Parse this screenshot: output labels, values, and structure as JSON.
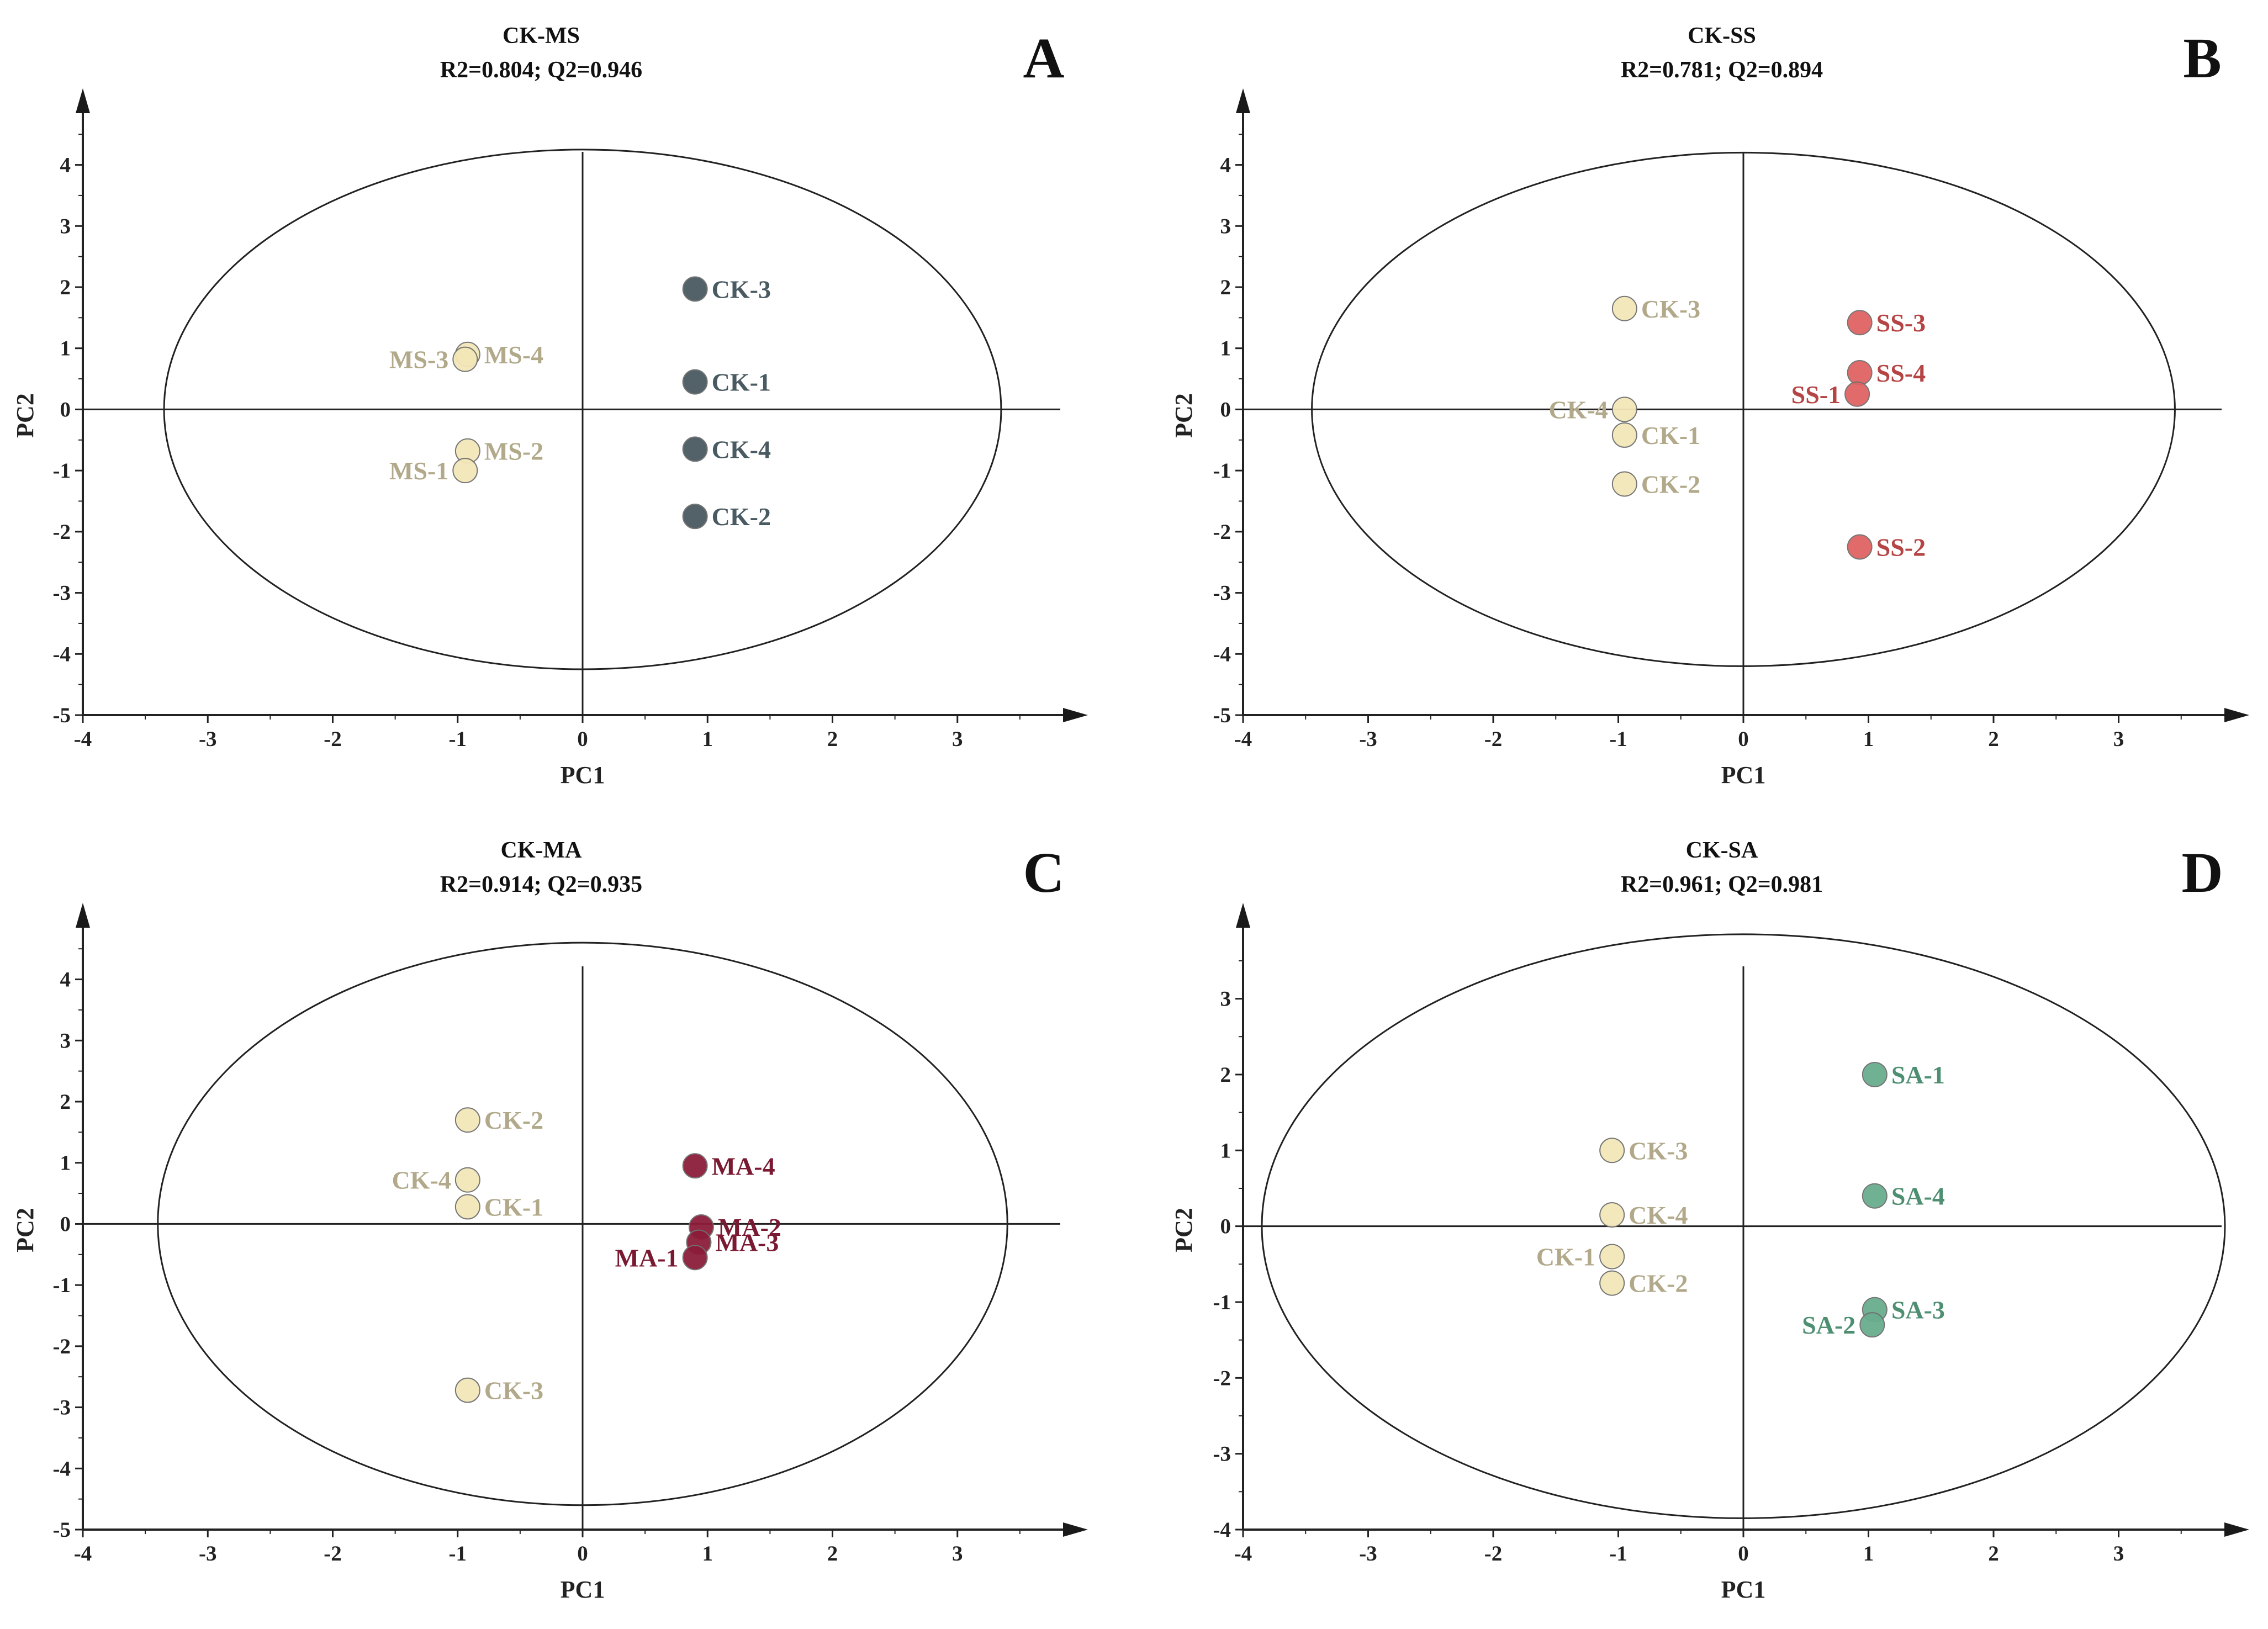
{
  "chart_data": [
    {
      "type": "scatter",
      "panel_letter": "A",
      "title": "CK-MS",
      "subtitle": "R2=0.804; Q2=0.946",
      "xlabel": "PC1",
      "ylabel": "PC2",
      "xlim": [
        -4,
        4
      ],
      "ylim": [
        -5,
        4.8
      ],
      "xticks": [
        -4,
        -3,
        -2,
        -1,
        0,
        1,
        2,
        3
      ],
      "yticks": [
        -5,
        -4,
        -3,
        -2,
        -1,
        0,
        1,
        2,
        3,
        4
      ],
      "ellipse": {
        "rx": 3.35,
        "ry": 4.25
      },
      "series": [
        {
          "name": "CK",
          "color": "#4a5a62",
          "points": [
            {
              "label": "CK-3",
              "x": 0.9,
              "y": 1.97,
              "anchor": "right"
            },
            {
              "label": "CK-1",
              "x": 0.9,
              "y": 0.45,
              "anchor": "right"
            },
            {
              "label": "CK-4",
              "x": 0.9,
              "y": -0.65,
              "anchor": "right"
            },
            {
              "label": "CK-2",
              "x": 0.9,
              "y": -1.75,
              "anchor": "right"
            }
          ]
        },
        {
          "name": "MS",
          "color": "#f3e7b8",
          "label_color": "#b1a98a",
          "points": [
            {
              "label": "MS-4",
              "x": -0.92,
              "y": 0.9,
              "anchor": "right"
            },
            {
              "label": "MS-3",
              "x": -0.94,
              "y": 0.82,
              "anchor": "left"
            },
            {
              "label": "MS-2",
              "x": -0.92,
              "y": -0.68,
              "anchor": "right"
            },
            {
              "label": "MS-1",
              "x": -0.94,
              "y": -1.0,
              "anchor": "left"
            }
          ]
        }
      ]
    },
    {
      "type": "scatter",
      "panel_letter": "B",
      "title": "CK-SS",
      "subtitle": "R2=0.781; Q2=0.894",
      "xlabel": "PC1",
      "ylabel": "PC2",
      "xlim": [
        -4,
        4
      ],
      "ylim": [
        -5,
        4.8
      ],
      "xticks": [
        -4,
        -3,
        -2,
        -1,
        0,
        1,
        2,
        3
      ],
      "yticks": [
        -5,
        -4,
        -3,
        -2,
        -1,
        0,
        1,
        2,
        3,
        4
      ],
      "ellipse": {
        "rx": 3.45,
        "ry": 4.2
      },
      "series": [
        {
          "name": "CK",
          "color": "#f3e7b8",
          "label_color": "#b1a98a",
          "points": [
            {
              "label": "CK-3",
              "x": -0.95,
              "y": 1.65,
              "anchor": "right"
            },
            {
              "label": "CK-4",
              "x": -0.95,
              "y": 0.0,
              "anchor": "left"
            },
            {
              "label": "CK-1",
              "x": -0.95,
              "y": -0.42,
              "anchor": "right"
            },
            {
              "label": "CK-2",
              "x": -0.95,
              "y": -1.22,
              "anchor": "right"
            }
          ]
        },
        {
          "name": "SS",
          "color": "#e06464",
          "label_color": "#b54545",
          "points": [
            {
              "label": "SS-3",
              "x": 0.93,
              "y": 1.42,
              "anchor": "right"
            },
            {
              "label": "SS-4",
              "x": 0.93,
              "y": 0.6,
              "anchor": "right"
            },
            {
              "label": "SS-1",
              "x": 0.91,
              "y": 0.25,
              "anchor": "left"
            },
            {
              "label": "SS-2",
              "x": 0.93,
              "y": -2.25,
              "anchor": "right"
            }
          ]
        }
      ]
    },
    {
      "type": "scatter",
      "panel_letter": "C",
      "title": "CK-MA",
      "subtitle": "R2=0.914; Q2=0.935",
      "xlabel": "PC1",
      "ylabel": "PC2",
      "xlim": [
        -4,
        4
      ],
      "ylim": [
        -5,
        4.8
      ],
      "xticks": [
        -4,
        -3,
        -2,
        -1,
        0,
        1,
        2,
        3
      ],
      "yticks": [
        -5,
        -4,
        -3,
        -2,
        -1,
        0,
        1,
        2,
        3,
        4
      ],
      "ellipse": {
        "rx": 3.4,
        "ry": 4.6
      },
      "series": [
        {
          "name": "CK",
          "color": "#f3e7b8",
          "label_color": "#b1a98a",
          "points": [
            {
              "label": "CK-2",
              "x": -0.92,
              "y": 1.7,
              "anchor": "right"
            },
            {
              "label": "CK-4",
              "x": -0.92,
              "y": 0.72,
              "anchor": "left"
            },
            {
              "label": "CK-1",
              "x": -0.92,
              "y": 0.28,
              "anchor": "right"
            },
            {
              "label": "CK-3",
              "x": -0.92,
              "y": -2.72,
              "anchor": "right"
            }
          ]
        },
        {
          "name": "MA",
          "color": "#8c1d3a",
          "label_color": "#7a1a32",
          "points": [
            {
              "label": "MA-4",
              "x": 0.9,
              "y": 0.95,
              "anchor": "right"
            },
            {
              "label": "MA-2",
              "x": 0.95,
              "y": -0.05,
              "anchor": "right"
            },
            {
              "label": "MA-3",
              "x": 0.93,
              "y": -0.3,
              "anchor": "right"
            },
            {
              "label": "MA-1",
              "x": 0.9,
              "y": -0.55,
              "anchor": "left"
            }
          ]
        }
      ]
    },
    {
      "type": "scatter",
      "panel_letter": "D",
      "title": "CK-SA",
      "subtitle": "R2=0.961; Q2=0.981",
      "xlabel": "PC1",
      "ylabel": "PC2",
      "xlim": [
        -4,
        4
      ],
      "ylim": [
        -4,
        3.9
      ],
      "xticks": [
        -4,
        -3,
        -2,
        -1,
        0,
        1,
        2,
        3
      ],
      "yticks": [
        -4,
        -3,
        -2,
        -1,
        0,
        1,
        2,
        3
      ],
      "ellipse": {
        "rx": 3.85,
        "ry": 3.85
      },
      "series": [
        {
          "name": "CK",
          "color": "#f3e7b8",
          "label_color": "#b1a98a",
          "points": [
            {
              "label": "CK-3",
              "x": -1.05,
              "y": 1.0,
              "anchor": "right"
            },
            {
              "label": "CK-4",
              "x": -1.05,
              "y": 0.15,
              "anchor": "right"
            },
            {
              "label": "CK-1",
              "x": -1.05,
              "y": -0.4,
              "anchor": "left"
            },
            {
              "label": "CK-2",
              "x": -1.05,
              "y": -0.75,
              "anchor": "right"
            }
          ]
        },
        {
          "name": "SA",
          "color": "#6aad8e",
          "label_color": "#4e8f72",
          "points": [
            {
              "label": "SA-1",
              "x": 1.05,
              "y": 2.0,
              "anchor": "right"
            },
            {
              "label": "SA-4",
              "x": 1.05,
              "y": 0.4,
              "anchor": "right"
            },
            {
              "label": "SA-3",
              "x": 1.05,
              "y": -1.1,
              "anchor": "right"
            },
            {
              "label": "SA-2",
              "x": 1.03,
              "y": -1.3,
              "anchor": "left"
            }
          ]
        }
      ]
    }
  ]
}
